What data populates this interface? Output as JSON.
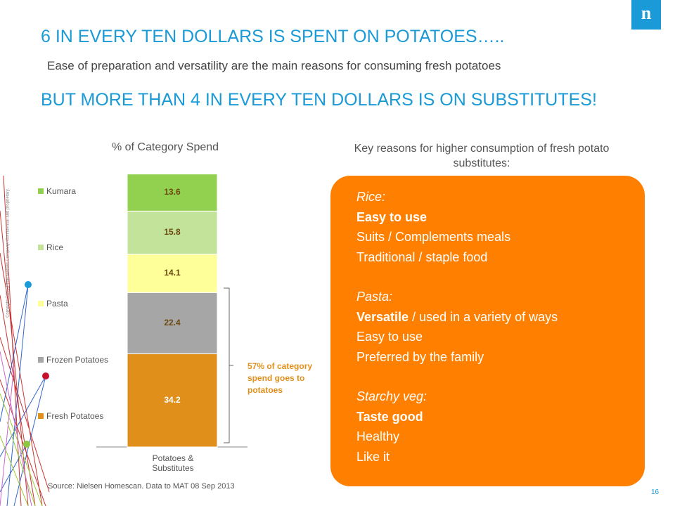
{
  "logo": "n",
  "copyright": "Copyright ©2013 The Nielsen Company. Confidential and proprietary.",
  "title": "6 IN EVERY TEN DOLLARS IS SPENT ON POTATOES…..",
  "subtitle": "Ease of preparation and versatility are the main reasons for consuming fresh potatoes",
  "title2": "BUT MORE THAN 4 IN EVERY TEN DOLLARS IS ON SUBSTITUTES!",
  "chart_data": {
    "type": "stacked_bar",
    "title": "% of Category Spend",
    "categories": [
      "Potatoes & Substitutes"
    ],
    "series": [
      {
        "name": "Fresh Potatoes",
        "color": "#e0901a",
        "values": [
          34.2
        ]
      },
      {
        "name": "Frozen Potatoes",
        "color": "#a6a6a6",
        "values": [
          22.4
        ]
      },
      {
        "name": "Pasta",
        "color": "#ffff99",
        "values": [
          14.1
        ]
      },
      {
        "name": "Rice",
        "color": "#c3e29a",
        "values": [
          15.8
        ]
      },
      {
        "name": "Kumara",
        "color": "#92d050",
        "values": [
          13.6
        ]
      }
    ],
    "ylim": [
      0,
      100
    ],
    "annotation": "57% of category spend goes to potatoes"
  },
  "reasons": {
    "title": "Key reasons for higher consumption of fresh potato substitutes:",
    "groups": [
      {
        "heading": "Rice:",
        "lines": [
          [
            {
              "text": "Easy to use",
              "bold": true
            }
          ],
          [
            {
              "text": "Suits / Complements meals",
              "bold": false
            }
          ],
          [
            {
              "text": "Traditional / staple food",
              "bold": false
            }
          ]
        ]
      },
      {
        "heading": "Pasta:",
        "lines": [
          [
            {
              "text": "Versatile",
              "bold": true
            },
            {
              "text": " / used in a variety of ways",
              "bold": false
            }
          ],
          [
            {
              "text": "Easy to use",
              "bold": false
            }
          ],
          [
            {
              "text": "Preferred by the family",
              "bold": false
            }
          ]
        ]
      },
      {
        "heading": "Starchy veg:",
        "lines": [
          [
            {
              "text": "Taste good",
              "bold": true
            }
          ],
          [
            {
              "text": "Healthy",
              "bold": false
            }
          ],
          [
            {
              "text": "Like it",
              "bold": false
            }
          ]
        ]
      }
    ]
  },
  "source": "Source: Nielsen Homescan. Data to MAT 08 Sep 2013",
  "page_number": "16"
}
